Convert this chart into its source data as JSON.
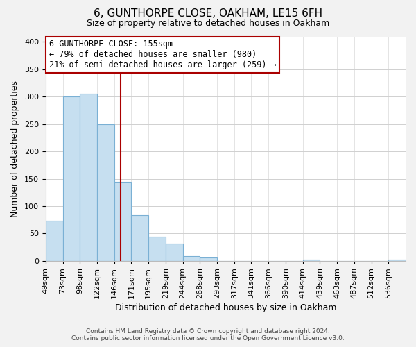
{
  "title1": "6, GUNTHORPE CLOSE, OAKHAM, LE15 6FH",
  "title2": "Size of property relative to detached houses in Oakham",
  "xlabel": "Distribution of detached houses by size in Oakham",
  "ylabel": "Number of detached properties",
  "bin_labels": [
    "49sqm",
    "73sqm",
    "98sqm",
    "122sqm",
    "146sqm",
    "171sqm",
    "195sqm",
    "219sqm",
    "244sqm",
    "268sqm",
    "293sqm",
    "317sqm",
    "341sqm",
    "366sqm",
    "390sqm",
    "414sqm",
    "439sqm",
    "463sqm",
    "487sqm",
    "512sqm",
    "536sqm"
  ],
  "bar_heights": [
    73,
    300,
    305,
    250,
    145,
    83,
    44,
    32,
    9,
    6,
    0,
    0,
    0,
    0,
    0,
    2,
    0,
    0,
    0,
    0,
    2
  ],
  "bar_color": "#c6dff0",
  "bar_edge_color": "#7ab0d4",
  "vline_color": "#aa0000",
  "ylim": [
    0,
    410
  ],
  "yticks": [
    0,
    50,
    100,
    150,
    200,
    250,
    300,
    350,
    400
  ],
  "annotation_title": "6 GUNTHORPE CLOSE: 155sqm",
  "annotation_line1": "← 79% of detached houses are smaller (980)",
  "annotation_line2": "21% of semi-detached houses are larger (259) →",
  "annotation_box_color": "#ffffff",
  "annotation_box_edge": "#aa0000",
  "footer_line1": "Contains HM Land Registry data © Crown copyright and database right 2024.",
  "footer_line2": "Contains public sector information licensed under the Open Government Licence v3.0.",
  "background_color": "#f2f2f2",
  "plot_background": "#ffffff",
  "grid_color": "#d0d0d0",
  "title1_fontsize": 11,
  "title2_fontsize": 9,
  "xlabel_fontsize": 9,
  "ylabel_fontsize": 9,
  "tick_fontsize": 8,
  "footer_fontsize": 6.5,
  "ann_fontsize": 8.5,
  "vline_x": 4.36
}
